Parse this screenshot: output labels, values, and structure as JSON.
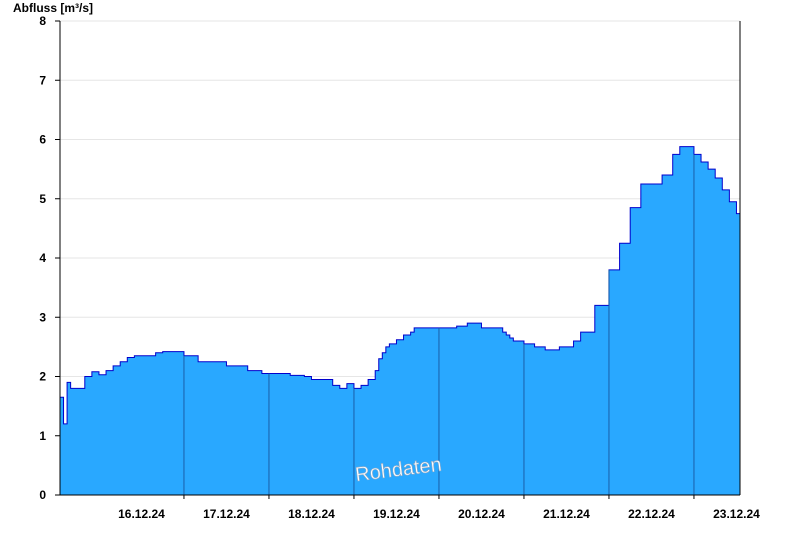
{
  "chart_data": {
    "type": "area",
    "ylabel": "Abfluss [m³/s]",
    "watermark": "Rohdaten",
    "ylim": [
      0,
      8
    ],
    "yticks": [
      0,
      1,
      2,
      3,
      4,
      5,
      6,
      7,
      8
    ],
    "xlim": [
      "15.12.24 13:00",
      "23.12.24 13:00"
    ],
    "xticks": [
      "16.12.24",
      "17.12.24",
      "18.12.24",
      "19.12.24",
      "20.12.24",
      "21.12.24",
      "22.12.24",
      "23.12.24"
    ],
    "grid": true,
    "fill_color": "#29a8ff",
    "line_color": "#0000cc",
    "series": [
      {
        "x": [
          "15.12.24 13:00",
          "15.12.24 14:00",
          "15.12.24 15:00",
          "15.12.24 16:00",
          "15.12.24 18:00",
          "15.12.24 20:00",
          "15.12.24 22:00",
          "16.12.24 00:00",
          "16.12.24 02:00",
          "16.12.24 04:00",
          "16.12.24 06:00",
          "16.12.24 08:00",
          "16.12.24 10:00",
          "16.12.24 12:00",
          "16.12.24 14:00",
          "16.12.24 16:00",
          "16.12.24 18:00",
          "16.12.24 20:00",
          "17.12.24 00:00",
          "17.12.24 04:00",
          "17.12.24 06:00",
          "17.12.24 12:00",
          "17.12.24 18:00",
          "17.12.24 22:00",
          "18.12.24 02:00",
          "18.12.24 06:00",
          "18.12.24 10:00",
          "18.12.24 12:00",
          "18.12.24 14:00",
          "18.12.24 16:00",
          "18.12.24 18:00",
          "18.12.24 20:00",
          "18.12.24 22:00",
          "19.12.24 00:00",
          "19.12.24 02:00",
          "19.12.24 04:00",
          "19.12.24 06:00",
          "19.12.24 07:00",
          "19.12.24 08:00",
          "19.12.24 09:00",
          "19.12.24 10:00",
          "19.12.24 12:00",
          "19.12.24 14:00",
          "19.12.24 16:00",
          "19.12.24 17:00",
          "19.12.24 19:00",
          "19.12.24 21:00",
          "19.12.24 23:00",
          "20.12.24 02:00",
          "20.12.24 05:00",
          "20.12.24 08:00",
          "20.12.24 12:00",
          "20.12.24 18:00",
          "20.12.24 19:00",
          "20.12.24 20:00",
          "20.12.24 21:00",
          "21.12.24 00:00",
          "21.12.24 03:00",
          "21.12.24 06:00",
          "21.12.24 10:00",
          "21.12.24 12:00",
          "21.12.24 14:00",
          "21.12.24 16:00",
          "21.12.24 20:00",
          "22.12.24 00:00",
          "22.12.24 03:00",
          "22.12.24 06:00",
          "22.12.24 09:00",
          "22.12.24 12:00",
          "22.12.24 15:00",
          "22.12.24 18:00",
          "22.12.24 20:00",
          "22.12.24 22:00",
          "23.12.24 00:00",
          "23.12.24 02:00",
          "23.12.24 04:00",
          "23.12.24 06:00",
          "23.12.24 08:00",
          "23.12.24 10:00",
          "23.12.24 12:00",
          "23.12.24 13:00"
        ],
        "y": [
          1.65,
          1.2,
          1.9,
          1.8,
          1.8,
          2.0,
          2.08,
          2.03,
          2.1,
          2.18,
          2.25,
          2.32,
          2.35,
          2.35,
          2.35,
          2.4,
          2.42,
          2.42,
          2.35,
          2.25,
          2.25,
          2.18,
          2.1,
          2.05,
          2.05,
          2.02,
          2.0,
          1.95,
          1.95,
          1.95,
          1.85,
          1.8,
          1.88,
          1.8,
          1.85,
          1.95,
          2.1,
          2.3,
          2.4,
          2.5,
          2.55,
          2.62,
          2.7,
          2.75,
          2.82,
          2.82,
          2.82,
          2.82,
          2.82,
          2.85,
          2.9,
          2.82,
          2.75,
          2.7,
          2.65,
          2.6,
          2.55,
          2.5,
          2.45,
          2.5,
          2.5,
          2.6,
          2.75,
          3.2,
          3.8,
          4.25,
          4.85,
          5.25,
          5.25,
          5.4,
          5.75,
          5.88,
          5.88,
          5.75,
          5.62,
          5.5,
          5.35,
          5.15,
          4.95,
          4.75,
          4.65
        ]
      }
    ]
  }
}
